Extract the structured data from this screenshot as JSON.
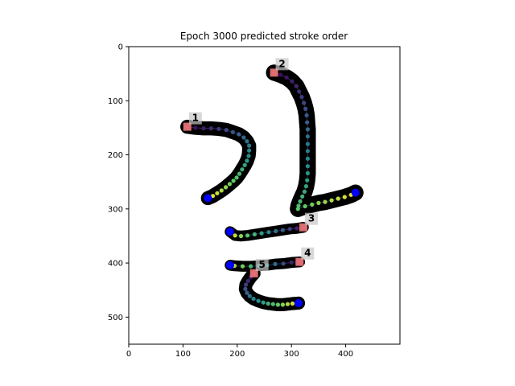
{
  "chart_data": {
    "type": "scatter",
    "title": "Epoch 3000 predicted stroke order",
    "xlabel": "",
    "ylabel": "",
    "xlim": [
      0,
      500
    ],
    "ylim": [
      550,
      0
    ],
    "y_inverted": true,
    "xticks": [
      0,
      100,
      200,
      300,
      400
    ],
    "yticks": [
      0,
      100,
      200,
      300,
      400,
      500
    ],
    "grid": false,
    "colormap": "viridis",
    "start_marker_color": "#ff8080",
    "end_marker_color": "#0000ff",
    "glyph_color": "#000000",
    "strokes": [
      {
        "label": "1",
        "points": [
          [
            108,
            148
          ],
          [
            123,
            150
          ],
          [
            138,
            151
          ],
          [
            152,
            151
          ],
          [
            166,
            152
          ],
          [
            180,
            154
          ],
          [
            192,
            158
          ],
          [
            203,
            162
          ],
          [
            212,
            168
          ],
          [
            218,
            175
          ],
          [
            222,
            183
          ],
          [
            222,
            192
          ],
          [
            221,
            202
          ],
          [
            218,
            211
          ],
          [
            214,
            219
          ],
          [
            209,
            227
          ],
          [
            204,
            235
          ],
          [
            199,
            242
          ],
          [
            193,
            248
          ],
          [
            186,
            254
          ],
          [
            179,
            260
          ],
          [
            171,
            266
          ],
          [
            163,
            271
          ],
          [
            155,
            276
          ],
          [
            146,
            280
          ]
        ],
        "thickness": 26
      },
      {
        "label": "2",
        "points": [
          [
            268,
            48
          ],
          [
            280,
            52
          ],
          [
            291,
            57
          ],
          [
            301,
            64
          ],
          [
            309,
            73
          ],
          [
            314,
            83
          ],
          [
            319,
            93
          ],
          [
            323,
            104
          ],
          [
            326,
            115
          ],
          [
            328,
            127
          ],
          [
            329,
            140
          ],
          [
            330,
            153
          ],
          [
            330,
            166
          ],
          [
            330,
            180
          ],
          [
            330,
            193
          ],
          [
            330,
            207
          ],
          [
            330,
            221
          ],
          [
            330,
            234
          ],
          [
            329,
            247
          ],
          [
            327,
            258
          ],
          [
            324,
            268
          ],
          [
            320,
            277
          ],
          [
            316,
            286
          ],
          [
            313,
            294
          ],
          [
            312,
            300
          ],
          [
            325,
            295
          ],
          [
            338,
            292
          ],
          [
            350,
            289
          ],
          [
            362,
            287
          ],
          [
            374,
            284
          ],
          [
            386,
            281
          ],
          [
            398,
            278
          ],
          [
            410,
            274
          ],
          [
            418,
            270
          ]
        ],
        "thickness": 30
      },
      {
        "label": "3",
        "points": [
          [
            322,
            334
          ],
          [
            310,
            336
          ],
          [
            297,
            337
          ],
          [
            284,
            339
          ],
          [
            271,
            341
          ],
          [
            258,
            343
          ],
          [
            245,
            345
          ],
          [
            232,
            347
          ],
          [
            219,
            349
          ],
          [
            207,
            350
          ],
          [
            196,
            349
          ],
          [
            187,
            342
          ]
        ],
        "thickness": 20
      },
      {
        "label": "4",
        "points": [
          [
            315,
            398
          ],
          [
            300,
            399
          ],
          [
            285,
            401
          ],
          [
            270,
            402
          ],
          [
            255,
            404
          ],
          [
            240,
            405
          ],
          [
            225,
            406
          ],
          [
            210,
            406
          ],
          [
            195,
            405
          ],
          [
            187,
            404
          ]
        ],
        "thickness": 20
      },
      {
        "label": "5",
        "points": [
          [
            231,
            419
          ],
          [
            225,
            426
          ],
          [
            220,
            433
          ],
          [
            216,
            440
          ],
          [
            215,
            448
          ],
          [
            218,
            455
          ],
          [
            223,
            461
          ],
          [
            230,
            466
          ],
          [
            239,
            470
          ],
          [
            248,
            473
          ],
          [
            257,
            475
          ],
          [
            266,
            476
          ],
          [
            275,
            477
          ],
          [
            284,
            477
          ],
          [
            293,
            476
          ],
          [
            302,
            475
          ],
          [
            313,
            474
          ]
        ],
        "thickness": 24
      }
    ]
  }
}
